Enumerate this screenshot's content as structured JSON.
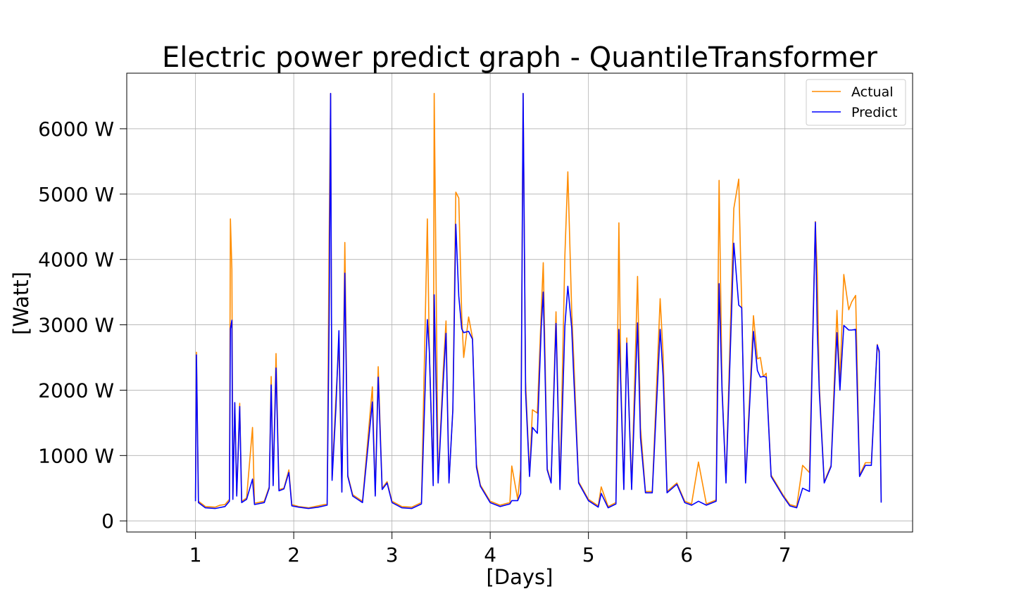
{
  "chart_data": {
    "type": "line",
    "title": "Electric power predict graph - QuantileTransformer",
    "xlabel": "[Days]",
    "ylabel": "[Watt]",
    "xlim": [
      0.3,
      8.3
    ],
    "ylim": [
      -170,
      6850
    ],
    "x_ticks": [
      {
        "value": 1,
        "label": "1"
      },
      {
        "value": 2,
        "label": "2"
      },
      {
        "value": 3,
        "label": "3"
      },
      {
        "value": 4,
        "label": "4"
      },
      {
        "value": 5,
        "label": "5"
      },
      {
        "value": 6,
        "label": "6"
      },
      {
        "value": 7,
        "label": "7"
      }
    ],
    "y_ticks": [
      {
        "value": 0,
        "label": "0"
      },
      {
        "value": 1000,
        "label": "1000 W"
      },
      {
        "value": 2000,
        "label": "2000 W"
      },
      {
        "value": 3000,
        "label": "3000 W"
      },
      {
        "value": 4000,
        "label": "4000 W"
      },
      {
        "value": 5000,
        "label": "5000 W"
      },
      {
        "value": 6000,
        "label": "6000 W"
      }
    ],
    "grid": true,
    "legend_position": "top-right",
    "colors": {
      "Actual": "#ff8c00",
      "Predict": "#0000ff",
      "grid": "#b0b0b0"
    },
    "series": [
      {
        "name": "Actual",
        "color": "#ff8c00",
        "points": [
          [
            1.0,
            350
          ],
          [
            1.01,
            2580
          ],
          [
            1.03,
            300
          ],
          [
            1.1,
            220
          ],
          [
            1.2,
            210
          ],
          [
            1.25,
            240
          ],
          [
            1.3,
            250
          ],
          [
            1.345,
            330
          ],
          [
            1.355,
            4620
          ],
          [
            1.37,
            3850
          ],
          [
            1.38,
            350
          ],
          [
            1.4,
            1800
          ],
          [
            1.42,
            400
          ],
          [
            1.45,
            1800
          ],
          [
            1.47,
            300
          ],
          [
            1.52,
            350
          ],
          [
            1.58,
            1430
          ],
          [
            1.6,
            270
          ],
          [
            1.7,
            300
          ],
          [
            1.75,
            520
          ],
          [
            1.77,
            2210
          ],
          [
            1.79,
            560
          ],
          [
            1.82,
            2560
          ],
          [
            1.85,
            480
          ],
          [
            1.9,
            500
          ],
          [
            1.95,
            780
          ],
          [
            1.98,
            250
          ],
          [
            2.05,
            220
          ],
          [
            2.15,
            200
          ],
          [
            2.25,
            230
          ],
          [
            2.34,
            260
          ],
          [
            2.36,
            4300
          ],
          [
            2.375,
            6540
          ],
          [
            2.39,
            650
          ],
          [
            2.43,
            1900
          ],
          [
            2.46,
            2700
          ],
          [
            2.49,
            450
          ],
          [
            2.52,
            4260
          ],
          [
            2.55,
            700
          ],
          [
            2.6,
            400
          ],
          [
            2.7,
            300
          ],
          [
            2.8,
            2050
          ],
          [
            2.83,
            400
          ],
          [
            2.86,
            2360
          ],
          [
            2.9,
            500
          ],
          [
            2.95,
            600
          ],
          [
            3.0,
            300
          ],
          [
            3.1,
            220
          ],
          [
            3.2,
            210
          ],
          [
            3.3,
            280
          ],
          [
            3.36,
            4620
          ],
          [
            3.38,
            2600
          ],
          [
            3.42,
            560
          ],
          [
            3.43,
            6540
          ],
          [
            3.47,
            600
          ],
          [
            3.52,
            2260
          ],
          [
            3.55,
            3060
          ],
          [
            3.58,
            600
          ],
          [
            3.62,
            1700
          ],
          [
            3.65,
            5030
          ],
          [
            3.68,
            4940
          ],
          [
            3.71,
            3140
          ],
          [
            3.73,
            2500
          ],
          [
            3.78,
            3120
          ],
          [
            3.82,
            2800
          ],
          [
            3.86,
            870
          ],
          [
            3.9,
            550
          ],
          [
            4.0,
            300
          ],
          [
            4.1,
            240
          ],
          [
            4.2,
            280
          ],
          [
            4.22,
            840
          ],
          [
            4.28,
            330
          ],
          [
            4.31,
            800
          ],
          [
            4.335,
            6540
          ],
          [
            4.36,
            2130
          ],
          [
            4.4,
            700
          ],
          [
            4.43,
            1700
          ],
          [
            4.48,
            1650
          ],
          [
            4.52,
            3220
          ],
          [
            4.54,
            3950
          ],
          [
            4.58,
            800
          ],
          [
            4.62,
            600
          ],
          [
            4.67,
            3200
          ],
          [
            4.71,
            500
          ],
          [
            4.76,
            4060
          ],
          [
            4.79,
            5340
          ],
          [
            4.83,
            3200
          ],
          [
            4.85,
            2500
          ],
          [
            4.9,
            600
          ],
          [
            5.0,
            330
          ],
          [
            5.1,
            230
          ],
          [
            5.13,
            520
          ],
          [
            5.2,
            220
          ],
          [
            5.28,
            280
          ],
          [
            5.31,
            4560
          ],
          [
            5.33,
            2170
          ],
          [
            5.36,
            500
          ],
          [
            5.39,
            2800
          ],
          [
            5.44,
            500
          ],
          [
            5.5,
            3740
          ],
          [
            5.53,
            1430
          ],
          [
            5.58,
            450
          ],
          [
            5.65,
            450
          ],
          [
            5.73,
            3400
          ],
          [
            5.76,
            2540
          ],
          [
            5.8,
            450
          ],
          [
            5.9,
            580
          ],
          [
            5.98,
            300
          ],
          [
            6.05,
            260
          ],
          [
            6.12,
            900
          ],
          [
            6.2,
            260
          ],
          [
            6.3,
            320
          ],
          [
            6.33,
            5210
          ],
          [
            6.36,
            2050
          ],
          [
            6.4,
            600
          ],
          [
            6.48,
            4780
          ],
          [
            6.53,
            5230
          ],
          [
            6.56,
            3300
          ],
          [
            6.6,
            600
          ],
          [
            6.68,
            3140
          ],
          [
            6.72,
            2480
          ],
          [
            6.75,
            2500
          ],
          [
            6.78,
            2210
          ],
          [
            6.81,
            2260
          ],
          [
            6.86,
            700
          ],
          [
            6.92,
            550
          ],
          [
            6.98,
            400
          ],
          [
            7.05,
            250
          ],
          [
            7.12,
            220
          ],
          [
            7.18,
            850
          ],
          [
            7.25,
            740
          ],
          [
            7.31,
            4580
          ],
          [
            7.33,
            3770
          ],
          [
            7.35,
            2070
          ],
          [
            7.4,
            600
          ],
          [
            7.47,
            850
          ],
          [
            7.53,
            3220
          ],
          [
            7.56,
            2130
          ],
          [
            7.6,
            3770
          ],
          [
            7.65,
            3230
          ],
          [
            7.68,
            3350
          ],
          [
            7.72,
            3450
          ],
          [
            7.76,
            700
          ],
          [
            7.82,
            890
          ],
          [
            7.88,
            890
          ],
          [
            7.94,
            2700
          ],
          [
            7.96,
            2560
          ],
          [
            7.98,
            300
          ]
        ]
      },
      {
        "name": "Predict",
        "color": "#0000ff",
        "points": [
          [
            1.0,
            300
          ],
          [
            1.01,
            2540
          ],
          [
            1.03,
            280
          ],
          [
            1.1,
            200
          ],
          [
            1.2,
            190
          ],
          [
            1.3,
            220
          ],
          [
            1.345,
            300
          ],
          [
            1.355,
            2940
          ],
          [
            1.37,
            3070
          ],
          [
            1.38,
            330
          ],
          [
            1.4,
            1810
          ],
          [
            1.42,
            380
          ],
          [
            1.45,
            1750
          ],
          [
            1.47,
            280
          ],
          [
            1.52,
            330
          ],
          [
            1.58,
            640
          ],
          [
            1.6,
            250
          ],
          [
            1.7,
            280
          ],
          [
            1.75,
            500
          ],
          [
            1.77,
            2080
          ],
          [
            1.79,
            540
          ],
          [
            1.82,
            2340
          ],
          [
            1.85,
            460
          ],
          [
            1.9,
            490
          ],
          [
            1.95,
            740
          ],
          [
            1.98,
            230
          ],
          [
            2.05,
            210
          ],
          [
            2.15,
            190
          ],
          [
            2.25,
            210
          ],
          [
            2.34,
            240
          ],
          [
            2.36,
            3070
          ],
          [
            2.375,
            6540
          ],
          [
            2.39,
            620
          ],
          [
            2.43,
            1740
          ],
          [
            2.46,
            2910
          ],
          [
            2.49,
            440
          ],
          [
            2.52,
            3790
          ],
          [
            2.55,
            680
          ],
          [
            2.6,
            380
          ],
          [
            2.7,
            280
          ],
          [
            2.8,
            1820
          ],
          [
            2.83,
            380
          ],
          [
            2.86,
            2200
          ],
          [
            2.9,
            480
          ],
          [
            2.95,
            580
          ],
          [
            3.0,
            280
          ],
          [
            3.1,
            200
          ],
          [
            3.2,
            190
          ],
          [
            3.3,
            260
          ],
          [
            3.36,
            3080
          ],
          [
            3.38,
            2600
          ],
          [
            3.42,
            540
          ],
          [
            3.43,
            3460
          ],
          [
            3.47,
            580
          ],
          [
            3.52,
            2080
          ],
          [
            3.55,
            2870
          ],
          [
            3.58,
            580
          ],
          [
            3.62,
            1700
          ],
          [
            3.65,
            4540
          ],
          [
            3.68,
            3440
          ],
          [
            3.71,
            2940
          ],
          [
            3.73,
            2880
          ],
          [
            3.78,
            2900
          ],
          [
            3.82,
            2780
          ],
          [
            3.86,
            820
          ],
          [
            3.9,
            530
          ],
          [
            4.0,
            280
          ],
          [
            4.1,
            220
          ],
          [
            4.2,
            260
          ],
          [
            4.22,
            310
          ],
          [
            4.28,
            310
          ],
          [
            4.31,
            420
          ],
          [
            4.335,
            6540
          ],
          [
            4.36,
            1970
          ],
          [
            4.4,
            680
          ],
          [
            4.43,
            1430
          ],
          [
            4.48,
            1340
          ],
          [
            4.52,
            2980
          ],
          [
            4.54,
            3500
          ],
          [
            4.58,
            780
          ],
          [
            4.62,
            580
          ],
          [
            4.67,
            3020
          ],
          [
            4.71,
            480
          ],
          [
            4.76,
            2980
          ],
          [
            4.79,
            3590
          ],
          [
            4.83,
            2950
          ],
          [
            4.85,
            2230
          ],
          [
            4.9,
            580
          ],
          [
            5.0,
            310
          ],
          [
            5.1,
            210
          ],
          [
            5.13,
            420
          ],
          [
            5.2,
            200
          ],
          [
            5.28,
            260
          ],
          [
            5.31,
            2930
          ],
          [
            5.33,
            2030
          ],
          [
            5.36,
            480
          ],
          [
            5.39,
            2720
          ],
          [
            5.44,
            480
          ],
          [
            5.5,
            3030
          ],
          [
            5.53,
            1270
          ],
          [
            5.58,
            430
          ],
          [
            5.65,
            430
          ],
          [
            5.73,
            2930
          ],
          [
            5.76,
            2220
          ],
          [
            5.8,
            430
          ],
          [
            5.9,
            560
          ],
          [
            5.98,
            280
          ],
          [
            6.05,
            240
          ],
          [
            6.12,
            300
          ],
          [
            6.2,
            240
          ],
          [
            6.3,
            300
          ],
          [
            6.33,
            3630
          ],
          [
            6.36,
            1990
          ],
          [
            6.4,
            580
          ],
          [
            6.48,
            4250
          ],
          [
            6.53,
            3300
          ],
          [
            6.56,
            3260
          ],
          [
            6.6,
            580
          ],
          [
            6.68,
            2900
          ],
          [
            6.72,
            2300
          ],
          [
            6.75,
            2200
          ],
          [
            6.78,
            2210
          ],
          [
            6.81,
            2200
          ],
          [
            6.86,
            680
          ],
          [
            6.92,
            530
          ],
          [
            6.98,
            380
          ],
          [
            7.05,
            230
          ],
          [
            7.12,
            200
          ],
          [
            7.18,
            500
          ],
          [
            7.25,
            450
          ],
          [
            7.31,
            4570
          ],
          [
            7.33,
            2900
          ],
          [
            7.35,
            1980
          ],
          [
            7.4,
            580
          ],
          [
            7.47,
            830
          ],
          [
            7.53,
            2880
          ],
          [
            7.56,
            2000
          ],
          [
            7.6,
            2990
          ],
          [
            7.65,
            2920
          ],
          [
            7.68,
            2920
          ],
          [
            7.72,
            2930
          ],
          [
            7.76,
            680
          ],
          [
            7.82,
            850
          ],
          [
            7.88,
            850
          ],
          [
            7.94,
            2690
          ],
          [
            7.96,
            2600
          ],
          [
            7.98,
            280
          ]
        ]
      }
    ]
  }
}
